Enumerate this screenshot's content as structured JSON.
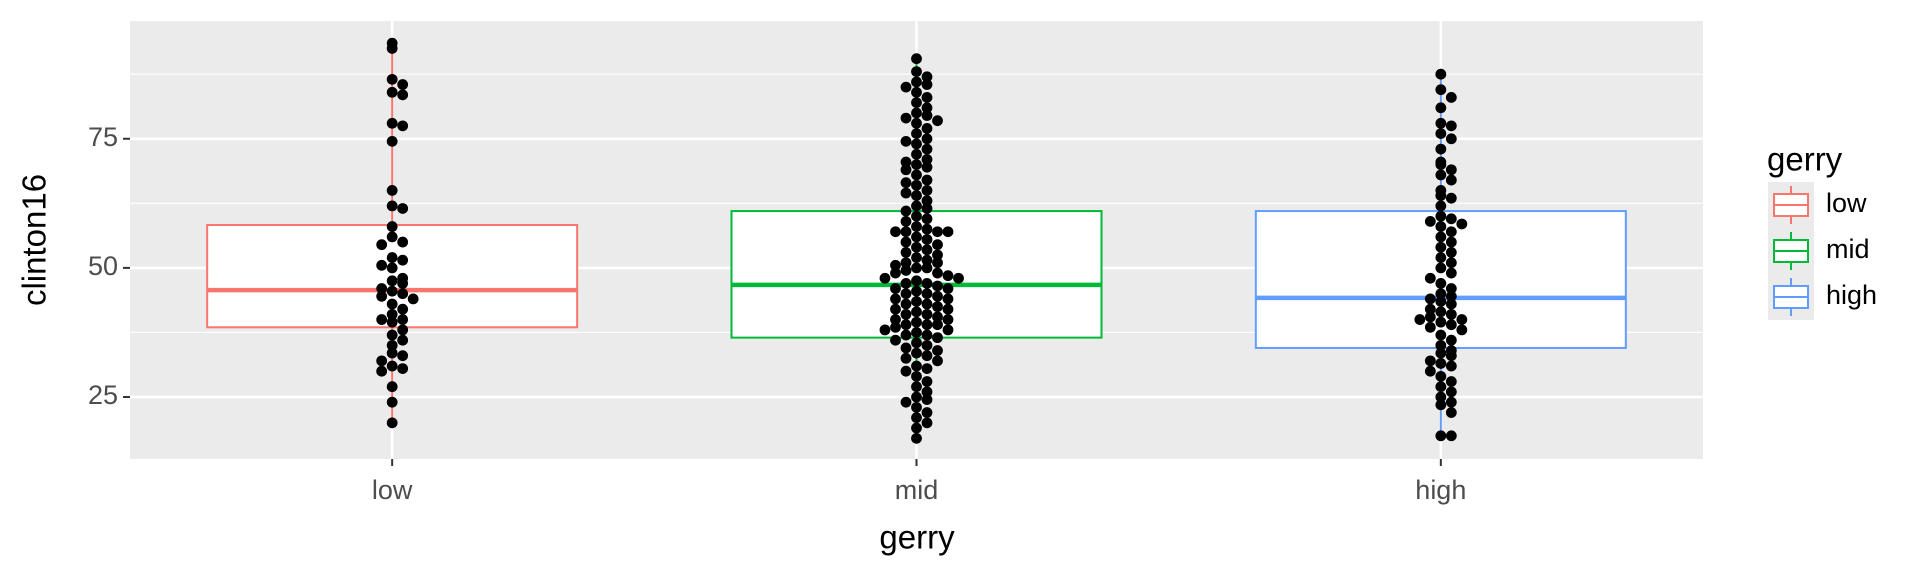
{
  "chart_data": {
    "type": "boxplot",
    "x_label": "gerry",
    "y_label": "clinton16",
    "legend_title": "gerry",
    "categories": [
      "low",
      "mid",
      "high"
    ],
    "ylim": [
      13,
      97.8
    ],
    "yticks": [
      25,
      50,
      75
    ],
    "y_minor": [
      37.5,
      62.5,
      87.5
    ],
    "grid": true,
    "legend_position": "right",
    "boxes": [
      {
        "color": "#F8766D",
        "whisker_low": 20,
        "q1": 38.5,
        "median": 45.7,
        "q3": 58.3,
        "whisker_high": 93.5,
        "points": [
          93.5,
          92.5,
          86.5,
          85.5,
          84,
          83.5,
          78,
          77.5,
          74.5,
          65,
          62,
          61.5,
          58,
          56,
          55,
          54.5,
          52,
          51.5,
          50.5,
          50,
          48,
          47.5,
          47,
          46,
          45.5,
          45,
          44.5,
          44,
          43,
          42,
          41,
          40,
          40,
          39.5,
          38,
          37,
          36,
          35,
          33.5,
          33,
          32,
          31,
          30.5,
          30,
          27,
          24,
          20
        ]
      },
      {
        "color": "#00BA38",
        "whisker_low": 17,
        "q1": 36.5,
        "median": 46.7,
        "q3": 61,
        "whisker_high": 90.5,
        "points": [
          90.5,
          88,
          87,
          86,
          85.5,
          85,
          84,
          83,
          82,
          81,
          80,
          79.5,
          79,
          78.5,
          78,
          77,
          76,
          75,
          74.5,
          74,
          73,
          72,
          71,
          70.5,
          70,
          69.5,
          69,
          68,
          67,
          66.5,
          66,
          65,
          64.5,
          64,
          63,
          62,
          61.5,
          61,
          60,
          59.5,
          59,
          58,
          57.5,
          57,
          57,
          57,
          57,
          56,
          55.5,
          55,
          54.5,
          54,
          53.5,
          53,
          52.5,
          52,
          51.5,
          51,
          51,
          50.5,
          50,
          50,
          49.5,
          49,
          49,
          48.5,
          48,
          48,
          47.5,
          47,
          47,
          46.5,
          46,
          46,
          45.5,
          45,
          45,
          44.5,
          44,
          44,
          43.5,
          43,
          43,
          42.5,
          42,
          42,
          41.5,
          41,
          41,
          40.5,
          40,
          40,
          39.5,
          39,
          39,
          39,
          38.5,
          38,
          38,
          37.5,
          37,
          37,
          36.5,
          36,
          35.5,
          35,
          34.5,
          34,
          33.5,
          33,
          32.5,
          32,
          31,
          30.5,
          30,
          29,
          28,
          27,
          26,
          25,
          24.5,
          24,
          23,
          22,
          21,
          20,
          19,
          17
        ]
      },
      {
        "color": "#619CFF",
        "whisker_low": 17.5,
        "q1": 34.5,
        "median": 44.2,
        "q3": 61,
        "whisker_high": 87.5,
        "points": [
          87.5,
          84.5,
          83,
          81,
          78,
          77.5,
          76,
          75,
          73,
          70.5,
          70,
          69,
          68,
          67,
          65,
          64,
          63.5,
          62,
          60,
          59.5,
          59,
          58.5,
          58,
          57,
          56,
          55,
          54,
          53,
          52,
          51,
          50,
          49,
          48,
          47,
          46,
          45,
          44.5,
          44,
          43.5,
          43,
          42,
          41.5,
          41,
          40.5,
          40,
          40,
          39.5,
          39,
          38.5,
          38,
          37,
          36,
          35,
          34,
          33.5,
          33,
          32,
          31.5,
          31,
          30,
          29,
          28,
          27,
          26,
          25,
          24,
          23.5,
          22,
          17.5,
          17.5
        ]
      }
    ]
  }
}
